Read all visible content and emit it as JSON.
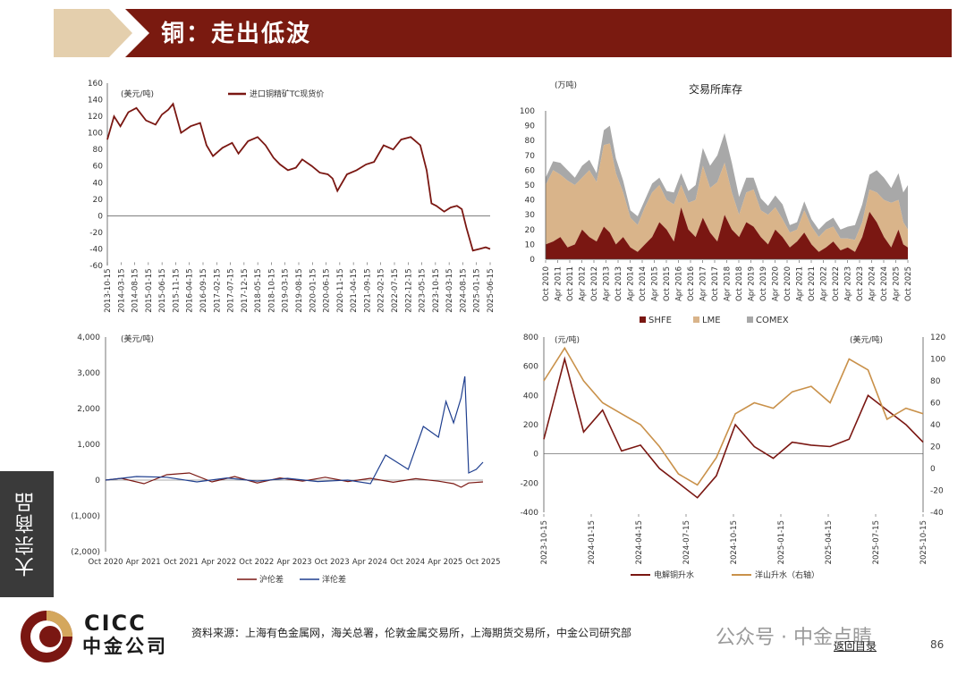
{
  "header": {
    "title": "铜：走出低波"
  },
  "sidebar": {
    "label": "大宗商品"
  },
  "footer": {
    "logo_en": "CICC",
    "logo_cn": "中金公司",
    "source": "资料来源：上海有色金属网，海关总署，伦敦金属交易所，上海期货交易所，中金公司研究部",
    "watermark": "公众号 · 中金点睛",
    "back_link": "返回目录",
    "page": "86"
  },
  "colors": {
    "brand": "#7a1712",
    "tan": "#d9b48a",
    "gray": "#a8a8a8",
    "banner_bg": "#7a1a10",
    "gold": "#d4a75d",
    "blue": "#1f3f8f",
    "orange": "#c9914a"
  },
  "chart_data": [
    {
      "type": "line",
      "unit": "(美元/吨)",
      "x_ticks": [
        "2013-10-15",
        "2014-03-15",
        "2014-08-15",
        "2015-01-15",
        "2015-06-15",
        "2015-11-15",
        "2016-04-15",
        "2016-09-15",
        "2017-02-15",
        "2017-07-15",
        "2017-12-15",
        "2018-05-15",
        "2018-10-15",
        "2019-03-15",
        "2019-08-15",
        "2020-01-15",
        "2020-06-15",
        "2020-11-15",
        "2021-04-15",
        "2021-09-15",
        "2022-02-15",
        "2022-07-15",
        "2022-12-15",
        "2023-05-15",
        "2023-10-15",
        "2024-03-15",
        "2024-08-15",
        "2025-01-15",
        "2025-06-15"
      ],
      "y_ticks": [
        "160",
        "140",
        "120",
        "100",
        "80",
        "60",
        "40",
        "20",
        "0",
        "-20",
        "-40",
        "-60"
      ],
      "ylim": [
        -60,
        160
      ],
      "series": [
        {
          "name": "进口铜精矿TC现货价",
          "x": [
            2013.79,
            2014.0,
            2014.2,
            2014.45,
            2014.7,
            2015.0,
            2015.3,
            2015.5,
            2015.7,
            2015.85,
            2016.1,
            2016.4,
            2016.7,
            2016.9,
            2017.1,
            2017.4,
            2017.7,
            2017.9,
            2018.2,
            2018.5,
            2018.75,
            2019.0,
            2019.2,
            2019.45,
            2019.7,
            2019.9,
            2020.2,
            2020.45,
            2020.7,
            2020.85,
            2021.0,
            2021.3,
            2021.6,
            2021.9,
            2022.15,
            2022.45,
            2022.75,
            2023.0,
            2023.3,
            2023.6,
            2023.8,
            2023.95,
            2024.1,
            2024.35,
            2024.55,
            2024.75,
            2024.9,
            2025.05,
            2025.25,
            2025.45,
            2025.65,
            2025.79
          ],
          "values": [
            92,
            120,
            108,
            125,
            130,
            115,
            110,
            122,
            128,
            135,
            100,
            108,
            112,
            85,
            72,
            82,
            88,
            75,
            90,
            95,
            85,
            70,
            62,
            55,
            58,
            68,
            60,
            52,
            50,
            45,
            30,
            50,
            55,
            62,
            65,
            85,
            80,
            92,
            95,
            85,
            55,
            15,
            12,
            5,
            10,
            12,
            8,
            -15,
            -42,
            -40,
            -38,
            -40
          ]
        }
      ]
    },
    {
      "type": "area",
      "title": "交易所库存",
      "unit": "(万吨)",
      "x_ticks": [
        "Oct 2010",
        "Apr 2011",
        "Oct 2011",
        "Apr 2012",
        "Oct 2012",
        "Apr 2013",
        "Oct 2013",
        "Apr 2014",
        "Oct 2014",
        "Apr 2015",
        "Oct 2015",
        "Apr 2016",
        "Oct 2016",
        "Apr 2017",
        "Oct 2017",
        "Apr 2018",
        "Oct 2018",
        "Apr 2019",
        "Oct 2019",
        "Apr 2020",
        "Oct 2020",
        "Apr 2021",
        "Oct 2021",
        "Apr 2022",
        "Oct 2022",
        "Apr 2023",
        "Oct 2023",
        "Apr 2024",
        "Oct 2024",
        "Apr 2025",
        "Oct 2025"
      ],
      "y_ticks": [
        "100",
        "90",
        "80",
        "70",
        "60",
        "50",
        "40",
        "30",
        "20",
        "10",
        "0"
      ],
      "ylim": [
        0,
        100
      ],
      "stacked": true,
      "x": [
        2010.79,
        2011.1,
        2011.4,
        2011.7,
        2012.0,
        2012.3,
        2012.6,
        2012.9,
        2013.2,
        2013.45,
        2013.7,
        2014.0,
        2014.3,
        2014.6,
        2014.9,
        2015.2,
        2015.5,
        2015.8,
        2016.1,
        2016.4,
        2016.7,
        2017.0,
        2017.3,
        2017.6,
        2017.9,
        2018.2,
        2018.5,
        2018.8,
        2019.1,
        2019.4,
        2019.7,
        2020.0,
        2020.3,
        2020.6,
        2020.9,
        2021.2,
        2021.5,
        2021.8,
        2022.1,
        2022.4,
        2022.7,
        2023.0,
        2023.3,
        2023.6,
        2023.9,
        2024.2,
        2024.5,
        2024.8,
        2025.1,
        2025.4,
        2025.6,
        2025.79
      ],
      "series": [
        {
          "name": "SHFE",
          "values": [
            10,
            12,
            15,
            8,
            10,
            20,
            15,
            12,
            22,
            18,
            10,
            15,
            8,
            5,
            10,
            15,
            25,
            20,
            12,
            35,
            20,
            15,
            28,
            18,
            12,
            30,
            20,
            15,
            25,
            22,
            15,
            10,
            20,
            15,
            8,
            12,
            18,
            10,
            5,
            8,
            12,
            6,
            8,
            5,
            15,
            32,
            25,
            15,
            8,
            20,
            10,
            8
          ]
        },
        {
          "name": "LME",
          "values": [
            40,
            48,
            42,
            45,
            40,
            35,
            45,
            40,
            55,
            60,
            48,
            30,
            20,
            18,
            25,
            30,
            25,
            20,
            25,
            15,
            18,
            25,
            35,
            30,
            40,
            35,
            25,
            15,
            20,
            25,
            18,
            20,
            15,
            12,
            10,
            8,
            15,
            12,
            10,
            12,
            10,
            8,
            6,
            8,
            10,
            15,
            20,
            25,
            30,
            20,
            15,
            12
          ]
        },
        {
          "name": "COMEX",
          "values": [
            5,
            6,
            8,
            7,
            5,
            8,
            7,
            6,
            10,
            12,
            10,
            8,
            5,
            6,
            5,
            6,
            5,
            6,
            8,
            8,
            8,
            10,
            12,
            15,
            18,
            20,
            20,
            12,
            10,
            8,
            8,
            6,
            8,
            10,
            5,
            5,
            6,
            5,
            5,
            5,
            6,
            6,
            8,
            10,
            12,
            10,
            15,
            15,
            10,
            18,
            20,
            30
          ]
        }
      ]
    },
    {
      "type": "line",
      "unit": "(美元/吨)",
      "x_ticks": [
        "Oct 2020",
        "Apr 2021",
        "Oct 2021",
        "Apr 2022",
        "Oct 2022",
        "Apr 2023",
        "Oct 2023",
        "Apr 2024",
        "Oct 2024",
        "Apr 2025",
        "Oct 2025"
      ],
      "y_ticks": [
        "4,000",
        "3,000",
        "2,000",
        "1,000",
        "0",
        "(1,000)",
        "(2,000)"
      ],
      "ylim": [
        -2000,
        4000
      ],
      "series": [
        {
          "name": "沪伦差",
          "x": [
            2020.79,
            2021.0,
            2021.3,
            2021.6,
            2021.9,
            2022.2,
            2022.5,
            2022.8,
            2023.1,
            2023.4,
            2023.7,
            2024.0,
            2024.3,
            2024.6,
            2024.9,
            2025.2,
            2025.4,
            2025.5,
            2025.6,
            2025.79
          ],
          "values": [
            0,
            50,
            -100,
            150,
            200,
            -50,
            100,
            -80,
            60,
            -30,
            80,
            -40,
            50,
            -60,
            40,
            -30,
            -100,
            -200,
            -80,
            -50
          ]
        },
        {
          "name": "洋伦差",
          "x": [
            2020.79,
            2021.2,
            2021.6,
            2022.0,
            2022.4,
            2022.8,
            2023.2,
            2023.6,
            2024.0,
            2024.3,
            2024.5,
            2024.8,
            2025.0,
            2025.2,
            2025.3,
            2025.4,
            2025.5,
            2025.55,
            2025.6,
            2025.7,
            2025.79
          ],
          "values": [
            0,
            100,
            80,
            -50,
            60,
            -30,
            50,
            -40,
            0,
            -100,
            700,
            300,
            1500,
            1200,
            2200,
            1600,
            2300,
            2900,
            200,
            300,
            500
          ]
        }
      ]
    },
    {
      "type": "line",
      "unit_left": "(元/吨)",
      "unit_right": "(美元/吨)",
      "x_ticks": [
        "2023-10-15",
        "2024-01-15",
        "2024-04-15",
        "2024-07-15",
        "2024-10-15",
        "2025-01-15",
        "2025-04-15",
        "2025-07-15",
        "2025-10-15"
      ],
      "y_ticks_left": [
        "800",
        "600",
        "400",
        "200",
        "0",
        "-200",
        "-400"
      ],
      "y_ticks_right": [
        "120",
        "100",
        "80",
        "60",
        "40",
        "20",
        "0",
        "-20",
        "-40"
      ],
      "ylim_left": [
        -400,
        800
      ],
      "ylim_right": [
        -40,
        120
      ],
      "series": [
        {
          "name": "电解铜升水",
          "axis": "left",
          "x": [
            2023.79,
            2023.9,
            2024.0,
            2024.1,
            2024.2,
            2024.3,
            2024.4,
            2024.5,
            2024.6,
            2024.7,
            2024.8,
            2024.9,
            2025.0,
            2025.1,
            2025.2,
            2025.3,
            2025.4,
            2025.5,
            2025.6,
            2025.7,
            2025.79
          ],
          "values": [
            100,
            650,
            150,
            300,
            20,
            60,
            -100,
            -200,
            -300,
            -150,
            200,
            50,
            -30,
            80,
            60,
            50,
            100,
            400,
            300,
            200,
            80
          ]
        },
        {
          "name": "洋山升水（右轴）",
          "axis": "right",
          "x": [
            2023.79,
            2023.9,
            2024.0,
            2024.1,
            2024.2,
            2024.3,
            2024.4,
            2024.5,
            2024.6,
            2024.7,
            2024.8,
            2024.9,
            2025.0,
            2025.1,
            2025.2,
            2025.3,
            2025.4,
            2025.5,
            2025.6,
            2025.7,
            2025.79
          ],
          "values": [
            80,
            110,
            80,
            60,
            50,
            40,
            20,
            -5,
            -15,
            10,
            50,
            60,
            55,
            70,
            75,
            60,
            100,
            90,
            45,
            55,
            50
          ]
        }
      ]
    }
  ]
}
